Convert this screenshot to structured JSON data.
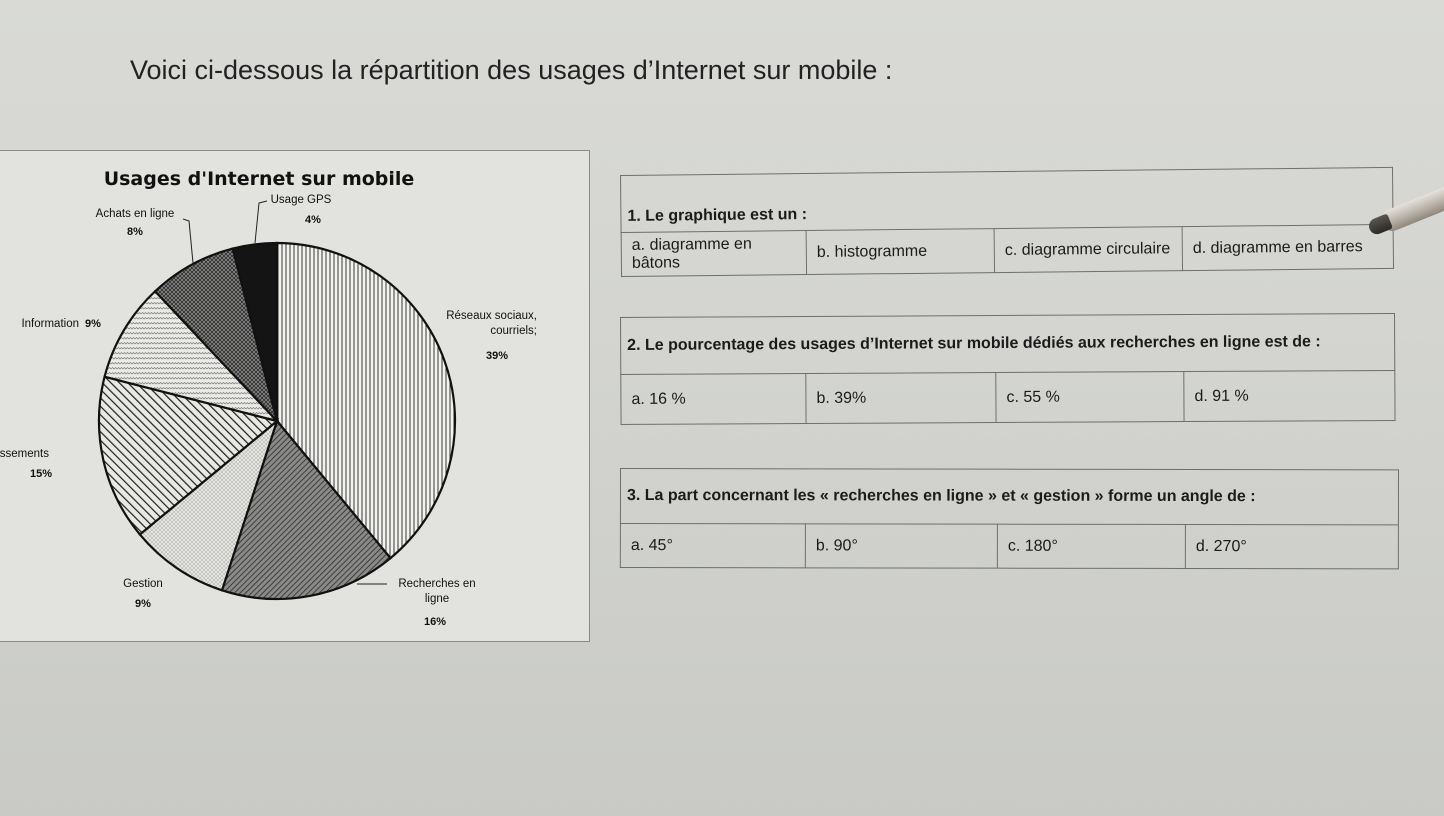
{
  "intro_text": "Voici ci-dessous la répartition des usages d’Internet sur mobile :",
  "chart_data": {
    "type": "pie",
    "title": "Usages d'Internet sur mobile",
    "slices": [
      {
        "label": "Réseaux sociaux, courriels;",
        "value": 39,
        "pct_label": "39%",
        "pattern": "vertical-lines"
      },
      {
        "label": "Recherches en ligne",
        "value": 16,
        "pct_label": "16%",
        "pattern": "dense-diagonal"
      },
      {
        "label": "Gestion",
        "value": 9,
        "pct_label": "9%",
        "pattern": "light-dots"
      },
      {
        "label": "Divertissements",
        "value": 15,
        "pct_label": "15%",
        "pattern": "diagonal-lines"
      },
      {
        "label": "Information",
        "value": 9,
        "pct_label": "9%",
        "pattern": "light-waves"
      },
      {
        "label": "Achats en ligne",
        "value": 8,
        "pct_label": "8%",
        "pattern": "dark-checker"
      },
      {
        "label": "Usage GPS",
        "value": 4,
        "pct_label": "4%",
        "pattern": "solid-black"
      }
    ]
  },
  "questions": [
    {
      "number": "1.",
      "text": "Le graphique est un :",
      "options": [
        "a. diagramme en bâtons",
        "b. histogramme",
        "c. diagramme circulaire",
        "d. diagramme en barres"
      ]
    },
    {
      "number": "2.",
      "text": "Le pourcentage des usages d’Internet sur mobile dédiés aux recherches en ligne est de :",
      "options": [
        "a.  16 %",
        "b. 39%",
        "c. 55 %",
        "d. 91 %"
      ]
    },
    {
      "number": "3.",
      "text": "La part concernant les « recherches en ligne » et « gestion » forme un angle de :",
      "options": [
        "a.  45°",
        "b.  90°",
        "c.  180°",
        "d.  270°"
      ]
    }
  ]
}
